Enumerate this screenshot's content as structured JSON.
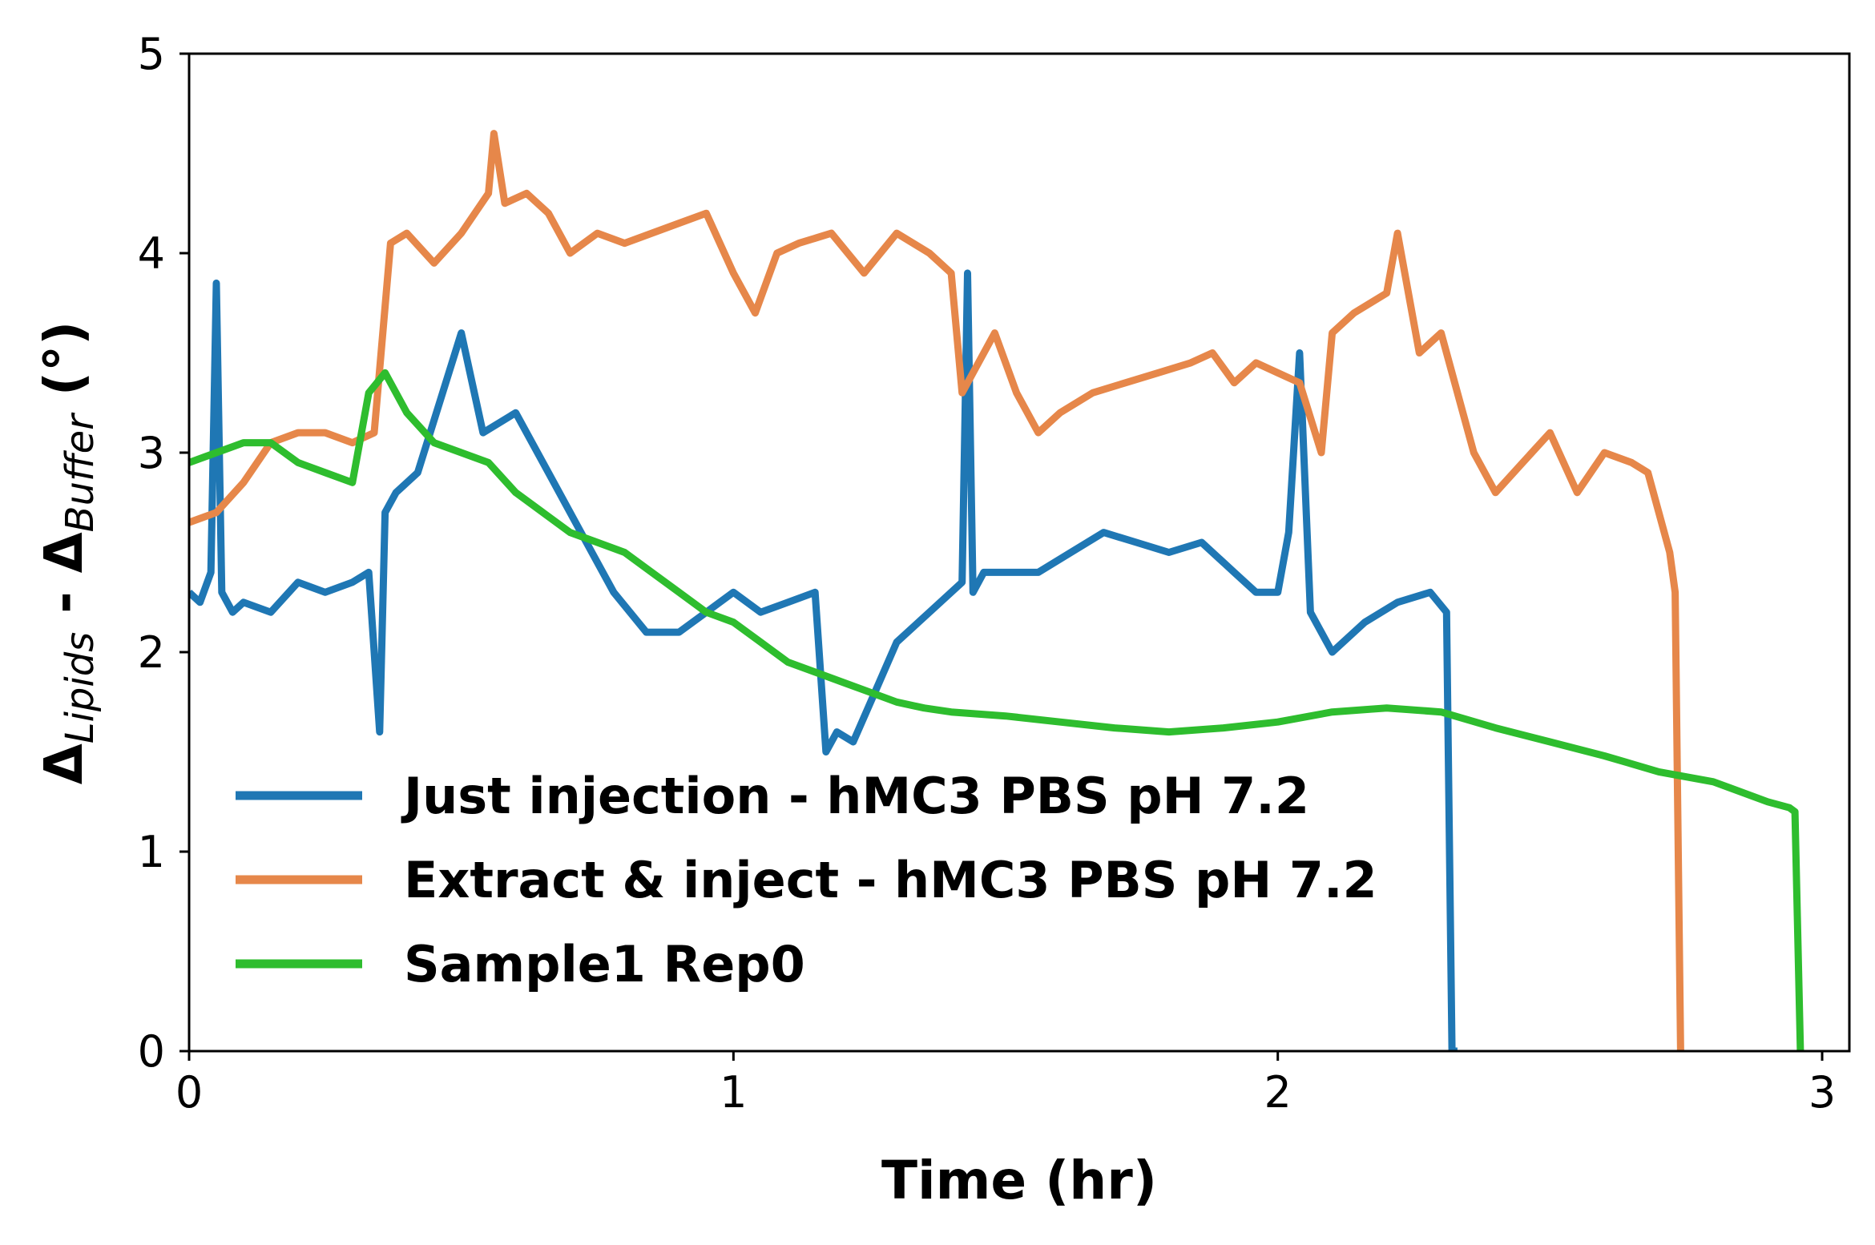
{
  "chart_data": {
    "type": "line",
    "xlabel": "Time (hr)",
    "ylabel_parts": {
      "d1": "Δ",
      "sub1": "Lipids",
      "mid": " - ",
      "d2": "Δ",
      "sub2": "Buffer",
      "unit": " (°)"
    },
    "xlim": [
      0,
      3.05
    ],
    "ylim": [
      0,
      5
    ],
    "x_ticks": [
      0,
      1,
      2,
      3
    ],
    "y_ticks": [
      0,
      1,
      2,
      3,
      4,
      5
    ],
    "grid": false,
    "legend_position": "lower-left",
    "series": [
      {
        "name": "Just injection - hMC3 PBS pH 7.2",
        "color": "#1f77b4",
        "x": [
          0.0,
          0.02,
          0.04,
          0.05,
          0.06,
          0.08,
          0.1,
          0.15,
          0.2,
          0.25,
          0.3,
          0.33,
          0.35,
          0.36,
          0.38,
          0.42,
          0.46,
          0.5,
          0.54,
          0.6,
          0.66,
          0.72,
          0.78,
          0.84,
          0.9,
          0.95,
          1.0,
          1.05,
          1.1,
          1.15,
          1.17,
          1.19,
          1.22,
          1.26,
          1.3,
          1.36,
          1.42,
          1.43,
          1.44,
          1.46,
          1.5,
          1.56,
          1.62,
          1.68,
          1.74,
          1.8,
          1.86,
          1.92,
          1.96,
          2.0,
          2.02,
          2.04,
          2.06,
          2.1,
          2.16,
          2.22,
          2.28,
          2.31,
          2.32,
          2.33
        ],
        "y": [
          2.3,
          2.25,
          2.4,
          3.85,
          2.3,
          2.2,
          2.25,
          2.2,
          2.35,
          2.3,
          2.35,
          2.4,
          1.6,
          2.7,
          2.8,
          2.9,
          3.25,
          3.6,
          3.1,
          3.2,
          2.9,
          2.6,
          2.3,
          2.1,
          2.1,
          2.2,
          2.3,
          2.2,
          2.25,
          2.3,
          1.5,
          1.6,
          1.55,
          1.8,
          2.05,
          2.2,
          2.35,
          3.9,
          2.3,
          2.4,
          2.4,
          2.4,
          2.5,
          2.6,
          2.55,
          2.5,
          2.55,
          2.4,
          2.3,
          2.3,
          2.6,
          3.5,
          2.2,
          2.0,
          2.15,
          2.25,
          2.3,
          2.2,
          0.0,
          0.0
        ]
      },
      {
        "name": "Extract & inject - hMC3 PBS pH 7.2",
        "color": "#e6874a",
        "x": [
          0.0,
          0.05,
          0.1,
          0.15,
          0.2,
          0.25,
          0.3,
          0.34,
          0.37,
          0.4,
          0.45,
          0.5,
          0.55,
          0.56,
          0.58,
          0.62,
          0.66,
          0.7,
          0.75,
          0.8,
          0.85,
          0.9,
          0.95,
          1.0,
          1.04,
          1.08,
          1.12,
          1.18,
          1.24,
          1.3,
          1.36,
          1.4,
          1.42,
          1.44,
          1.48,
          1.52,
          1.56,
          1.6,
          1.66,
          1.72,
          1.78,
          1.84,
          1.88,
          1.92,
          1.96,
          2.0,
          2.04,
          2.08,
          2.1,
          2.14,
          2.2,
          2.22,
          2.26,
          2.3,
          2.36,
          2.4,
          2.45,
          2.5,
          2.55,
          2.6,
          2.65,
          2.68,
          2.7,
          2.72,
          2.73,
          2.74
        ],
        "y": [
          2.65,
          2.7,
          2.85,
          3.05,
          3.1,
          3.1,
          3.05,
          3.1,
          4.05,
          4.1,
          3.95,
          4.1,
          4.3,
          4.6,
          4.25,
          4.3,
          4.2,
          4.0,
          4.1,
          4.05,
          4.1,
          4.15,
          4.2,
          3.9,
          3.7,
          4.0,
          4.05,
          4.1,
          3.9,
          4.1,
          4.0,
          3.9,
          3.3,
          3.4,
          3.6,
          3.3,
          3.1,
          3.2,
          3.3,
          3.35,
          3.4,
          3.45,
          3.5,
          3.35,
          3.45,
          3.4,
          3.35,
          3.0,
          3.6,
          3.7,
          3.8,
          4.1,
          3.5,
          3.6,
          3.0,
          2.8,
          2.95,
          3.1,
          2.8,
          3.0,
          2.95,
          2.9,
          2.7,
          2.5,
          2.3,
          0.0
        ]
      },
      {
        "name": "Sample1 Rep0",
        "color": "#2ebd2e",
        "x": [
          0.0,
          0.05,
          0.1,
          0.15,
          0.2,
          0.25,
          0.3,
          0.33,
          0.36,
          0.4,
          0.45,
          0.5,
          0.55,
          0.6,
          0.65,
          0.7,
          0.75,
          0.8,
          0.85,
          0.9,
          0.95,
          1.0,
          1.05,
          1.1,
          1.15,
          1.2,
          1.25,
          1.3,
          1.35,
          1.4,
          1.5,
          1.6,
          1.7,
          1.8,
          1.9,
          2.0,
          2.1,
          2.2,
          2.3,
          2.4,
          2.5,
          2.6,
          2.7,
          2.8,
          2.9,
          2.94,
          2.95,
          2.96
        ],
        "y": [
          2.95,
          3.0,
          3.05,
          3.05,
          2.95,
          2.9,
          2.85,
          3.3,
          3.4,
          3.2,
          3.05,
          3.0,
          2.95,
          2.8,
          2.7,
          2.6,
          2.55,
          2.5,
          2.4,
          2.3,
          2.2,
          2.15,
          2.05,
          1.95,
          1.9,
          1.85,
          1.8,
          1.75,
          1.72,
          1.7,
          1.68,
          1.65,
          1.62,
          1.6,
          1.62,
          1.65,
          1.7,
          1.72,
          1.7,
          1.62,
          1.55,
          1.48,
          1.4,
          1.35,
          1.25,
          1.22,
          1.2,
          0.0
        ]
      }
    ]
  }
}
